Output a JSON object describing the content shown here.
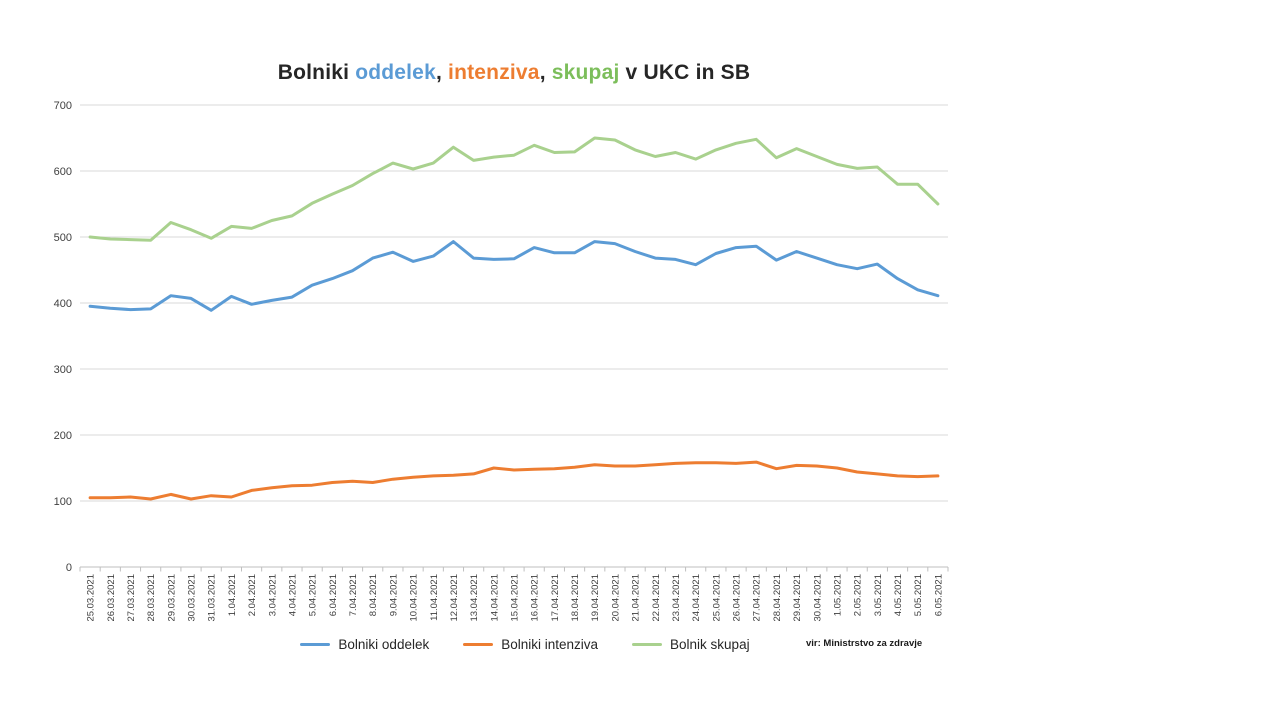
{
  "title": {
    "segments": [
      {
        "text": "Bolniki ",
        "color": "#262626"
      },
      {
        "text": "oddelek",
        "color": "#5B9BD5"
      },
      {
        "text": ", ",
        "color": "#262626"
      },
      {
        "text": "intenziva",
        "color": "#ED7D31"
      },
      {
        "text": ", ",
        "color": "#262626"
      },
      {
        "text": "skupaj",
        "color": "#7CBE5B"
      },
      {
        "text": " v UKC in SB",
        "color": "#262626"
      }
    ]
  },
  "source_note": "vir: Ministrstvo za zdravje",
  "chart_data": {
    "type": "line",
    "title": "Bolniki oddelek, intenziva, skupaj v UKC in SB",
    "categories": [
      "25.03.2021",
      "26.03.2021",
      "27.03.2021",
      "28.03.2021",
      "29.03.2021",
      "30.03.2021",
      "31.03.2021",
      "1.04.2021",
      "2.04.2021",
      "3.04.2021",
      "4.04.2021",
      "5.04.2021",
      "6.04.2021",
      "7.04.2021",
      "8.04.2021",
      "9.04.2021",
      "10.04.2021",
      "11.04.2021",
      "12.04.2021",
      "13.04.2021",
      "14.04.2021",
      "15.04.2021",
      "16.04.2021",
      "17.04.2021",
      "18.04.2021",
      "19.04.2021",
      "20.04.2021",
      "21.04.2021",
      "22.04.2021",
      "23.04.2021",
      "24.04.2021",
      "25.04.2021",
      "26.04.2021",
      "27.04.2021",
      "28.04.2021",
      "29.04.2021",
      "30.04.2021",
      "1.05.2021",
      "2.05.2021",
      "3.05.2021",
      "4.05.2021",
      "5.05.2021",
      "6.05.2021"
    ],
    "series": [
      {
        "name": "Bolniki oddelek",
        "color": "#5B9BD5",
        "values": [
          395,
          392,
          390,
          391,
          411,
          407,
          389,
          410,
          398,
          404,
          409,
          427,
          437,
          449,
          468,
          477,
          463,
          471,
          493,
          468,
          466,
          467,
          484,
          476,
          476,
          493,
          490,
          478,
          468,
          466,
          458,
          475,
          484,
          486,
          465,
          478,
          468,
          458,
          452,
          459,
          437,
          420,
          411
        ]
      },
      {
        "name": "Bolniki intenziva",
        "color": "#ED7D31",
        "values": [
          105,
          105,
          106,
          103,
          110,
          103,
          108,
          106,
          116,
          120,
          123,
          124,
          128,
          130,
          128,
          133,
          136,
          138,
          139,
          141,
          150,
          147,
          148,
          149,
          151,
          155,
          153,
          153,
          155,
          157,
          158,
          158,
          157,
          159,
          149,
          154,
          153,
          150,
          144,
          141,
          138,
          137,
          138
        ]
      },
      {
        "name": "Bolnik skupaj",
        "color": "#A9D18E",
        "values": [
          500,
          497,
          496,
          495,
          522,
          511,
          498,
          516,
          513,
          525,
          532,
          551,
          565,
          578,
          596,
          612,
          603,
          612,
          636,
          616,
          621,
          624,
          639,
          628,
          629,
          650,
          647,
          632,
          622,
          628,
          618,
          632,
          642,
          648,
          620,
          634,
          622,
          610,
          604,
          606,
          580,
          580,
          550
        ]
      }
    ],
    "ylim": [
      0,
      700
    ],
    "yticks": [
      0,
      100,
      200,
      300,
      400,
      500,
      600,
      700
    ],
    "grid": "horizontal",
    "legend_position": "bottom",
    "x_label_rotation": -90
  }
}
